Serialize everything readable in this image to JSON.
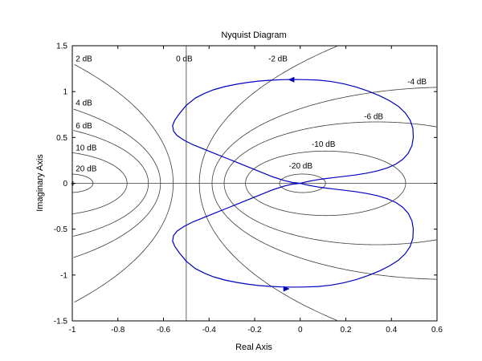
{
  "chart_data": {
    "type": "line",
    "title": "Nyquist Diagram",
    "xlabel": "Real Axis",
    "ylabel": "Imaginary Axis",
    "xlim": [
      -1,
      0.6
    ],
    "ylim": [
      -1.5,
      1.5
    ],
    "x_ticks": [
      -1,
      -0.8,
      -0.6,
      -0.4,
      -0.2,
      0,
      0.2,
      0.4,
      0.6
    ],
    "x_tick_labels": [
      "-1",
      "-0.8",
      "-0.6",
      "-0.4",
      "-0.2",
      "0",
      "0.2",
      "0.4",
      "0.6"
    ],
    "y_ticks": [
      -1.5,
      -1,
      -0.5,
      0,
      0.5,
      1,
      1.5
    ],
    "y_tick_labels": [
      "-1.5",
      "-1",
      "-0.5",
      "0",
      "0.5",
      "1",
      "1.5"
    ],
    "grid": "M-circles",
    "colors": {
      "nyquist": "#0000c0",
      "grid": "#3c3c3c",
      "critical_point": "#ff0000",
      "axes": "#000000"
    },
    "m_circle_labels": [
      {
        "db": 2,
        "text": "2 dB",
        "x": -0.985,
        "y": 1.33
      },
      {
        "db": 4,
        "text": "4 dB",
        "x": -0.985,
        "y": 0.85
      },
      {
        "db": 6,
        "text": "6 dB",
        "x": -0.985,
        "y": 0.6
      },
      {
        "db": 10,
        "text": "10 dB",
        "x": -0.985,
        "y": 0.36
      },
      {
        "db": 20,
        "text": "20 dB",
        "x": -0.985,
        "y": 0.13
      },
      {
        "db": 0,
        "text": "0 dB",
        "x": -0.545,
        "y": 1.33
      },
      {
        "db": -2,
        "text": "-2 dB",
        "x": -0.14,
        "y": 1.33
      },
      {
        "db": -4,
        "text": "-4 dB",
        "x": 0.47,
        "y": 1.08
      },
      {
        "db": -6,
        "text": "-6 dB",
        "x": 0.28,
        "y": 0.7
      },
      {
        "db": -10,
        "text": "-10 dB",
        "x": 0.05,
        "y": 0.4
      },
      {
        "db": -20,
        "text": "-20 dB",
        "x": -0.05,
        "y": 0.16
      }
    ],
    "series": [
      {
        "x": [
          0.0,
          0.006,
          0.014,
          0.024,
          0.038,
          0.055,
          0.078,
          0.108,
          0.145,
          0.19,
          0.24,
          0.29,
          0.338,
          0.382,
          0.42,
          0.45,
          0.474,
          0.49,
          0.496,
          0.494,
          0.482,
          0.46,
          0.43,
          0.392,
          0.348,
          0.298,
          0.245,
          0.19,
          0.135,
          0.08,
          0.025,
          -0.03,
          -0.08,
          -0.13,
          -0.18,
          -0.23,
          -0.28,
          -0.33,
          -0.38,
          -0.42,
          -0.46,
          -0.5,
          -0.53,
          -0.55,
          -0.56,
          -0.556,
          -0.54,
          -0.51,
          -0.47,
          -0.42,
          -0.37,
          -0.32,
          -0.27,
          -0.22,
          -0.17,
          -0.12,
          -0.07,
          -0.035,
          0.0
        ],
        "y": [
          0.0,
          0.004,
          0.009,
          0.015,
          0.022,
          0.03,
          0.04,
          0.05,
          0.062,
          0.075,
          0.09,
          0.11,
          0.135,
          0.168,
          0.21,
          0.262,
          0.328,
          0.41,
          0.5,
          0.6,
          0.69,
          0.77,
          0.84,
          0.9,
          0.955,
          1.005,
          1.05,
          1.085,
          1.11,
          1.125,
          1.13,
          1.132,
          1.13,
          1.124,
          1.115,
          1.1,
          1.08,
          1.055,
          1.02,
          0.98,
          0.93,
          0.85,
          0.76,
          0.69,
          0.63,
          0.57,
          0.52,
          0.47,
          0.42,
          0.37,
          0.32,
          0.27,
          0.22,
          0.17,
          0.12,
          0.07,
          0.03,
          0.01,
          0.0
        ]
      },
      {
        "x": [
          0.0,
          0.006,
          0.014,
          0.024,
          0.038,
          0.055,
          0.078,
          0.108,
          0.145,
          0.19,
          0.24,
          0.29,
          0.338,
          0.382,
          0.42,
          0.45,
          0.474,
          0.49,
          0.496,
          0.494,
          0.482,
          0.46,
          0.43,
          0.392,
          0.348,
          0.298,
          0.245,
          0.19,
          0.135,
          0.08,
          0.025,
          -0.03,
          -0.08,
          -0.13,
          -0.18,
          -0.23,
          -0.28,
          -0.33,
          -0.38,
          -0.42,
          -0.46,
          -0.5,
          -0.53,
          -0.55,
          -0.56,
          -0.556,
          -0.54,
          -0.51,
          -0.47,
          -0.42,
          -0.37,
          -0.32,
          -0.27,
          -0.22,
          -0.17,
          -0.12,
          -0.07,
          -0.035,
          0.0
        ],
        "y": [
          0.0,
          -0.004,
          -0.009,
          -0.015,
          -0.022,
          -0.03,
          -0.04,
          -0.05,
          -0.062,
          -0.075,
          -0.09,
          -0.11,
          -0.135,
          -0.168,
          -0.21,
          -0.262,
          -0.328,
          -0.41,
          -0.5,
          -0.6,
          -0.69,
          -0.77,
          -0.84,
          -0.9,
          -0.955,
          -1.005,
          -1.05,
          -1.085,
          -1.11,
          -1.125,
          -1.13,
          -1.132,
          -1.13,
          -1.124,
          -1.115,
          -1.1,
          -1.08,
          -1.055,
          -1.02,
          -0.98,
          -0.93,
          -0.85,
          -0.76,
          -0.69,
          -0.63,
          -0.57,
          -0.52,
          -0.47,
          -0.42,
          -0.37,
          -0.32,
          -0.27,
          -0.22,
          -0.17,
          -0.12,
          -0.07,
          -0.03,
          -0.01,
          0.0
        ]
      }
    ],
    "arrows": [
      {
        "x": -0.04,
        "y": 1.13,
        "direction": "left"
      },
      {
        "x": -0.06,
        "y": -1.15,
        "direction": "right"
      }
    ],
    "critical_point": {
      "x": -1,
      "y": 0
    }
  }
}
